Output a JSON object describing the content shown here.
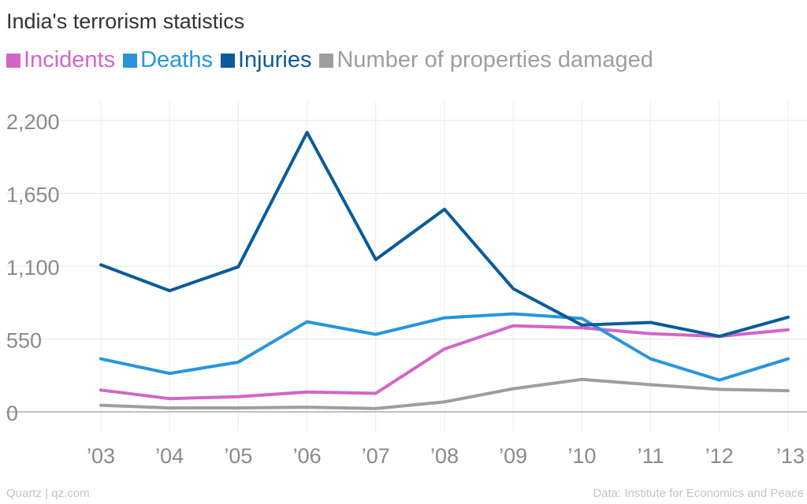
{
  "header": {
    "title": "India's terrorism statistics"
  },
  "footer": {
    "credit": "Quartz | qz.com",
    "source": "Data: Institute for Economics and Peace"
  },
  "chart_data": {
    "type": "line",
    "title": "India's terrorism statistics",
    "xlabel": "",
    "ylabel": "",
    "categories": [
      "’03",
      "’04",
      "’05",
      "’06",
      "’07",
      "’08",
      "’09",
      "’10",
      "’11",
      "’12",
      "’13"
    ],
    "ylim": [
      0,
      2200
    ],
    "yticks": [
      0,
      550,
      1100,
      1650,
      2200
    ],
    "ytick_labels": [
      "0",
      "550",
      "1,100",
      "1,650",
      "2,200"
    ],
    "grid": true,
    "legend_position": "top-left",
    "series": [
      {
        "name": "Incidents",
        "color": "#d365c7",
        "values": [
          165,
          100,
          115,
          150,
          140,
          475,
          650,
          635,
          590,
          570,
          620
        ]
      },
      {
        "name": "Deaths",
        "color": "#2895dd",
        "values": [
          400,
          290,
          375,
          680,
          585,
          710,
          740,
          705,
          400,
          240,
          400
        ]
      },
      {
        "name": "Injuries",
        "color": "#0a5b9a",
        "values": [
          1110,
          915,
          1095,
          2110,
          1150,
          1530,
          930,
          655,
          675,
          570,
          715
        ]
      },
      {
        "name": "Number of properties damaged",
        "color": "#9e9e9e",
        "values": [
          50,
          30,
          30,
          35,
          25,
          75,
          175,
          245,
          205,
          170,
          160
        ]
      }
    ]
  }
}
